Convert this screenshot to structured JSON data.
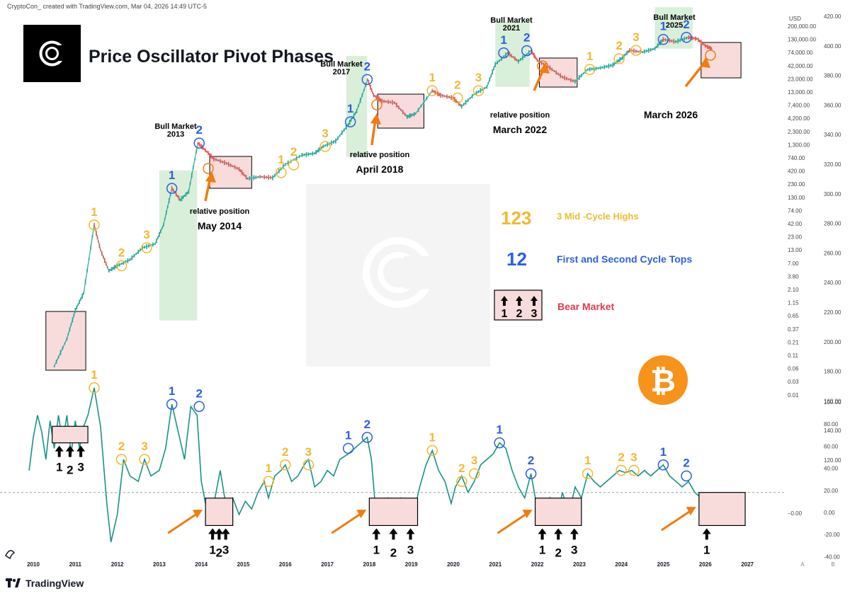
{
  "header": {
    "author_line": "CryptoCon_ created with TradingView.com, Mar 04, 2026 14:49 UTC-5"
  },
  "title": "Price Oscillator Pivot Phases",
  "footer": {
    "brand": "TradingView"
  },
  "colors": {
    "yellow": "#f2b92e",
    "blue": "#2b5fe0",
    "red": "#e03a4a",
    "teal": "#199285",
    "green_candle": "#26a69a",
    "red_candle": "#ef5350",
    "bull_zone": "#d9efd9",
    "bear_zone": "#f8dcdc",
    "orange_arrow": "#f07c12",
    "btc_orange": "#f7931a"
  },
  "legend": {
    "mid_cycle_numbers": "123",
    "mid_cycle_text": "3 Mid -Cycle Highs",
    "tops_numbers": "12",
    "tops_text": "First and Second Cycle Tops",
    "bear_digits": [
      "1",
      "2",
      "3"
    ],
    "bear_text": "Bear Market"
  },
  "bull_labels": [
    {
      "line1": "Bull Market",
      "line2": "2013"
    },
    {
      "line1": "Bull Market",
      "line2": "2017"
    },
    {
      "line1": "Bull Market",
      "line2": "2021"
    },
    {
      "line1": "Bull Market",
      "line2": "2025"
    }
  ],
  "relative_labels": [
    {
      "line1": "relative position",
      "line2": "May 2014"
    },
    {
      "line1": "relative position",
      "line2": "April 2018"
    },
    {
      "line1": "relative position",
      "line2": "March 2022"
    },
    {
      "line1": "",
      "line2": "March 2026"
    }
  ],
  "chart_data": [
    {
      "type": "line",
      "name": "price",
      "y_scale": "log",
      "axis_label": "USD",
      "y_ticks": [
        "200,000.00",
        "130,000.00",
        "74,000.00",
        "42,000.00",
        "23,000.00",
        "13,000.00",
        "7,400.00",
        "4,200.00",
        "2,300.00",
        "1,300.00",
        "740.00",
        "420.00",
        "230.00",
        "130.00",
        "74.00",
        "42.00",
        "23.00",
        "13.00",
        "7.00",
        "3.80",
        "2.10",
        "1.15",
        "0.65",
        "0.37",
        "0.21",
        "0.11",
        "0.06",
        "0.03",
        "0.01"
      ],
      "x": [
        2010.5,
        2010.8,
        2011.0,
        2011.2,
        2011.45,
        2011.6,
        2011.8,
        2012.0,
        2012.3,
        2012.6,
        2012.9,
        2013.1,
        2013.3,
        2013.5,
        2013.7,
        2013.92,
        2014.1,
        2014.3,
        2014.6,
        2014.9,
        2015.1,
        2015.4,
        2015.7,
        2016.0,
        2016.4,
        2016.7,
        2016.9,
        2017.2,
        2017.5,
        2017.7,
        2017.96,
        2018.1,
        2018.3,
        2018.6,
        2018.9,
        2019.1,
        2019.5,
        2019.7,
        2020.0,
        2020.2,
        2020.5,
        2020.8,
        2021.0,
        2021.3,
        2021.55,
        2021.85,
        2022.0,
        2022.3,
        2022.6,
        2022.9,
        2023.2,
        2023.5,
        2023.8,
        2024.0,
        2024.2,
        2024.5,
        2024.8,
        2025.0,
        2025.3,
        2025.6,
        2025.8,
        2026.0,
        2026.17
      ],
      "y": [
        0.06,
        0.2,
        0.7,
        1.5,
        30,
        10,
        4,
        5,
        6.5,
        11,
        13,
        30,
        150,
        90,
        130,
        1100,
        800,
        550,
        450,
        350,
        230,
        250,
        240,
        430,
        650,
        700,
        950,
        1200,
        2500,
        4500,
        18000,
        9000,
        7000,
        6500,
        3500,
        4000,
        11000,
        9000,
        8000,
        5500,
        9500,
        13000,
        35000,
        58000,
        40000,
        64000,
        42000,
        30000,
        20000,
        16500,
        28000,
        30000,
        34000,
        45000,
        65000,
        60000,
        70000,
        105000,
        95000,
        115000,
        108000,
        80000,
        68000
      ]
    },
    {
      "type": "line",
      "name": "oscillator",
      "y_ticks": [
        "100.00",
        "80.00",
        "60.00",
        "40.00",
        "20.00",
        "0.00",
        "-20.00",
        "-40.00"
      ],
      "y_ticks_scaled": [
        "420.00",
        "400.00",
        "380.00",
        "360.00",
        "340.00",
        "320.00",
        "300.00",
        "280.00",
        "260.00",
        "240.00",
        "220.00",
        "200.00",
        "180.00",
        "160.00",
        "140.00",
        "120.00"
      ],
      "marker_label": "–0.00",
      "x": [
        2009.9,
        2010.0,
        2010.1,
        2010.2,
        2010.3,
        2010.4,
        2010.5,
        2010.6,
        2010.7,
        2010.8,
        2010.9,
        2011.0,
        2011.1,
        2011.2,
        2011.3,
        2011.45,
        2011.6,
        2011.75,
        2011.85,
        2012.0,
        2012.15,
        2012.3,
        2012.5,
        2012.65,
        2012.8,
        2013.0,
        2013.15,
        2013.3,
        2013.45,
        2013.6,
        2013.75,
        2013.9,
        2014.0,
        2014.15,
        2014.3,
        2014.45,
        2014.6,
        2014.75,
        2014.9,
        2015.05,
        2015.2,
        2015.35,
        2015.5,
        2015.6,
        2015.75,
        2015.9,
        2016.0,
        2016.15,
        2016.3,
        2016.45,
        2016.55,
        2016.7,
        2016.85,
        2017.0,
        2017.15,
        2017.3,
        2017.5,
        2017.65,
        2017.8,
        2017.95,
        2018.05,
        2018.15,
        2018.3,
        2018.45,
        2018.6,
        2018.75,
        2018.9,
        2019.05,
        2019.2,
        2019.35,
        2019.5,
        2019.65,
        2019.8,
        2019.95,
        2020.05,
        2020.2,
        2020.35,
        2020.5,
        2020.65,
        2020.8,
        2020.95,
        2021.1,
        2021.25,
        2021.4,
        2021.55,
        2021.7,
        2021.85,
        2022.0,
        2022.15,
        2022.3,
        2022.45,
        2022.6,
        2022.75,
        2022.9,
        2023.05,
        2023.2,
        2023.35,
        2023.5,
        2023.65,
        2023.8,
        2023.95,
        2024.1,
        2024.25,
        2024.4,
        2024.55,
        2024.7,
        2024.85,
        2025.0,
        2025.15,
        2025.3,
        2025.45,
        2025.6,
        2025.75,
        2025.9,
        2026.05,
        2026.17
      ],
      "y": [
        20,
        50,
        70,
        55,
        30,
        65,
        40,
        70,
        45,
        70,
        35,
        65,
        40,
        60,
        70,
        95,
        60,
        -10,
        -45,
        -20,
        30,
        15,
        10,
        30,
        15,
        20,
        40,
        80,
        55,
        30,
        78,
        70,
        10,
        -20,
        -10,
        20,
        -15,
        -5,
        -20,
        -8,
        -15,
        0,
        10,
        -5,
        15,
        20,
        25,
        10,
        15,
        25,
        30,
        5,
        10,
        20,
        15,
        30,
        35,
        40,
        45,
        50,
        30,
        -15,
        -10,
        -5,
        -15,
        -5,
        -10,
        -20,
        5,
        25,
        38,
        20,
        10,
        -10,
        5,
        15,
        0,
        10,
        25,
        30,
        35,
        45,
        40,
        20,
        5,
        -5,
        17,
        -15,
        -20,
        -5,
        -25,
        0,
        -20,
        5,
        -5,
        17,
        10,
        5,
        10,
        15,
        20,
        18,
        20,
        15,
        20,
        15,
        20,
        25,
        15,
        10,
        5,
        10,
        0,
        -5,
        -15,
        -12
      ]
    }
  ],
  "x_ticks": [
    "2010",
    "2011",
    "2012",
    "2013",
    "2014",
    "2015",
    "2016",
    "2017",
    "2018",
    "2019",
    "2020",
    "2021",
    "2022",
    "2023",
    "2024",
    "2025",
    "2026",
    "2027"
  ],
  "axis_corner": {
    "a": "A",
    "b": "B"
  },
  "price_markers": [
    {
      "label": "1",
      "kind": "mid",
      "x": 2011.45,
      "y": 30
    },
    {
      "label": "2",
      "kind": "mid",
      "x": 2012.1,
      "y": 5
    },
    {
      "label": "3",
      "kind": "mid",
      "x": 2012.7,
      "y": 11
    },
    {
      "label": "1",
      "kind": "top",
      "x": 2013.3,
      "y": 150
    },
    {
      "label": "2",
      "kind": "top",
      "x": 2013.95,
      "y": 1100
    },
    {
      "label": "1",
      "kind": "mid",
      "x": 2015.9,
      "y": 300
    },
    {
      "label": "2",
      "kind": "mid",
      "x": 2016.2,
      "y": 420
    },
    {
      "label": "3",
      "kind": "mid",
      "x": 2016.95,
      "y": 950
    },
    {
      "label": "1",
      "kind": "top",
      "x": 2017.55,
      "y": 2800
    },
    {
      "label": "2",
      "kind": "top",
      "x": 2017.95,
      "y": 18000
    },
    {
      "label": "1",
      "kind": "mid",
      "x": 2019.5,
      "y": 11000
    },
    {
      "label": "2",
      "kind": "mid",
      "x": 2020.1,
      "y": 8000
    },
    {
      "label": "3",
      "kind": "mid",
      "x": 2020.6,
      "y": 11000
    },
    {
      "label": "1",
      "kind": "top",
      "x": 2021.2,
      "y": 58000
    },
    {
      "label": "2",
      "kind": "top",
      "x": 2021.75,
      "y": 64000
    },
    {
      "label": "1",
      "kind": "mid",
      "x": 2023.25,
      "y": 28000
    },
    {
      "label": "2",
      "kind": "mid",
      "x": 2023.95,
      "y": 45000
    },
    {
      "label": "3",
      "kind": "mid",
      "x": 2024.35,
      "y": 65000
    },
    {
      "label": "1",
      "kind": "top",
      "x": 2025.0,
      "y": 105000
    },
    {
      "label": "2",
      "kind": "top",
      "x": 2025.55,
      "y": 115000
    }
  ],
  "osc_markers": [
    {
      "label": "1",
      "kind": "mid",
      "x": 2011.45,
      "y": 95
    },
    {
      "label": "2",
      "kind": "mid",
      "x": 2012.1,
      "y": 30
    },
    {
      "label": "3",
      "kind": "mid",
      "x": 2012.65,
      "y": 30
    },
    {
      "label": "1",
      "kind": "top",
      "x": 2013.3,
      "y": 80
    },
    {
      "label": "2",
      "kind": "top",
      "x": 2013.95,
      "y": 78
    },
    {
      "label": "1",
      "kind": "mid",
      "x": 2015.6,
      "y": 10
    },
    {
      "label": "2",
      "kind": "mid",
      "x": 2016.0,
      "y": 25
    },
    {
      "label": "3",
      "kind": "mid",
      "x": 2016.55,
      "y": 25
    },
    {
      "label": "1",
      "kind": "top",
      "x": 2017.5,
      "y": 40
    },
    {
      "label": "2",
      "kind": "top",
      "x": 2017.95,
      "y": 50
    },
    {
      "label": "1",
      "kind": "mid",
      "x": 2019.5,
      "y": 38
    },
    {
      "label": "2",
      "kind": "mid",
      "x": 2020.2,
      "y": 10
    },
    {
      "label": "3",
      "kind": "mid",
      "x": 2020.5,
      "y": 17
    },
    {
      "label": "1",
      "kind": "top",
      "x": 2021.1,
      "y": 45
    },
    {
      "label": "2",
      "kind": "top",
      "x": 2021.85,
      "y": 17
    },
    {
      "label": "1",
      "kind": "mid",
      "x": 2023.2,
      "y": 17
    },
    {
      "label": "2",
      "kind": "mid",
      "x": 2024.0,
      "y": 20
    },
    {
      "label": "3",
      "kind": "mid",
      "x": 2024.3,
      "y": 20
    },
    {
      "label": "1",
      "kind": "top",
      "x": 2025.0,
      "y": 25
    },
    {
      "label": "2",
      "kind": "top",
      "x": 2025.55,
      "y": 15
    }
  ],
  "bear_boxes": [
    {
      "x0": 2010.45,
      "x1": 2011.3,
      "digits": [
        "1",
        "2",
        "3"
      ]
    },
    {
      "x0": 2014.1,
      "x1": 2014.75,
      "digits": [
        "1",
        "2",
        "3"
      ]
    },
    {
      "x0": 2018.0,
      "x1": 2019.15,
      "digits": [
        "1",
        "2",
        "3"
      ]
    },
    {
      "x0": 2021.95,
      "x1": 2023.05,
      "digits": [
        "1",
        "2",
        "3"
      ]
    },
    {
      "x0": 2025.85,
      "x1": 2026.95,
      "digits": [
        "1"
      ]
    }
  ]
}
